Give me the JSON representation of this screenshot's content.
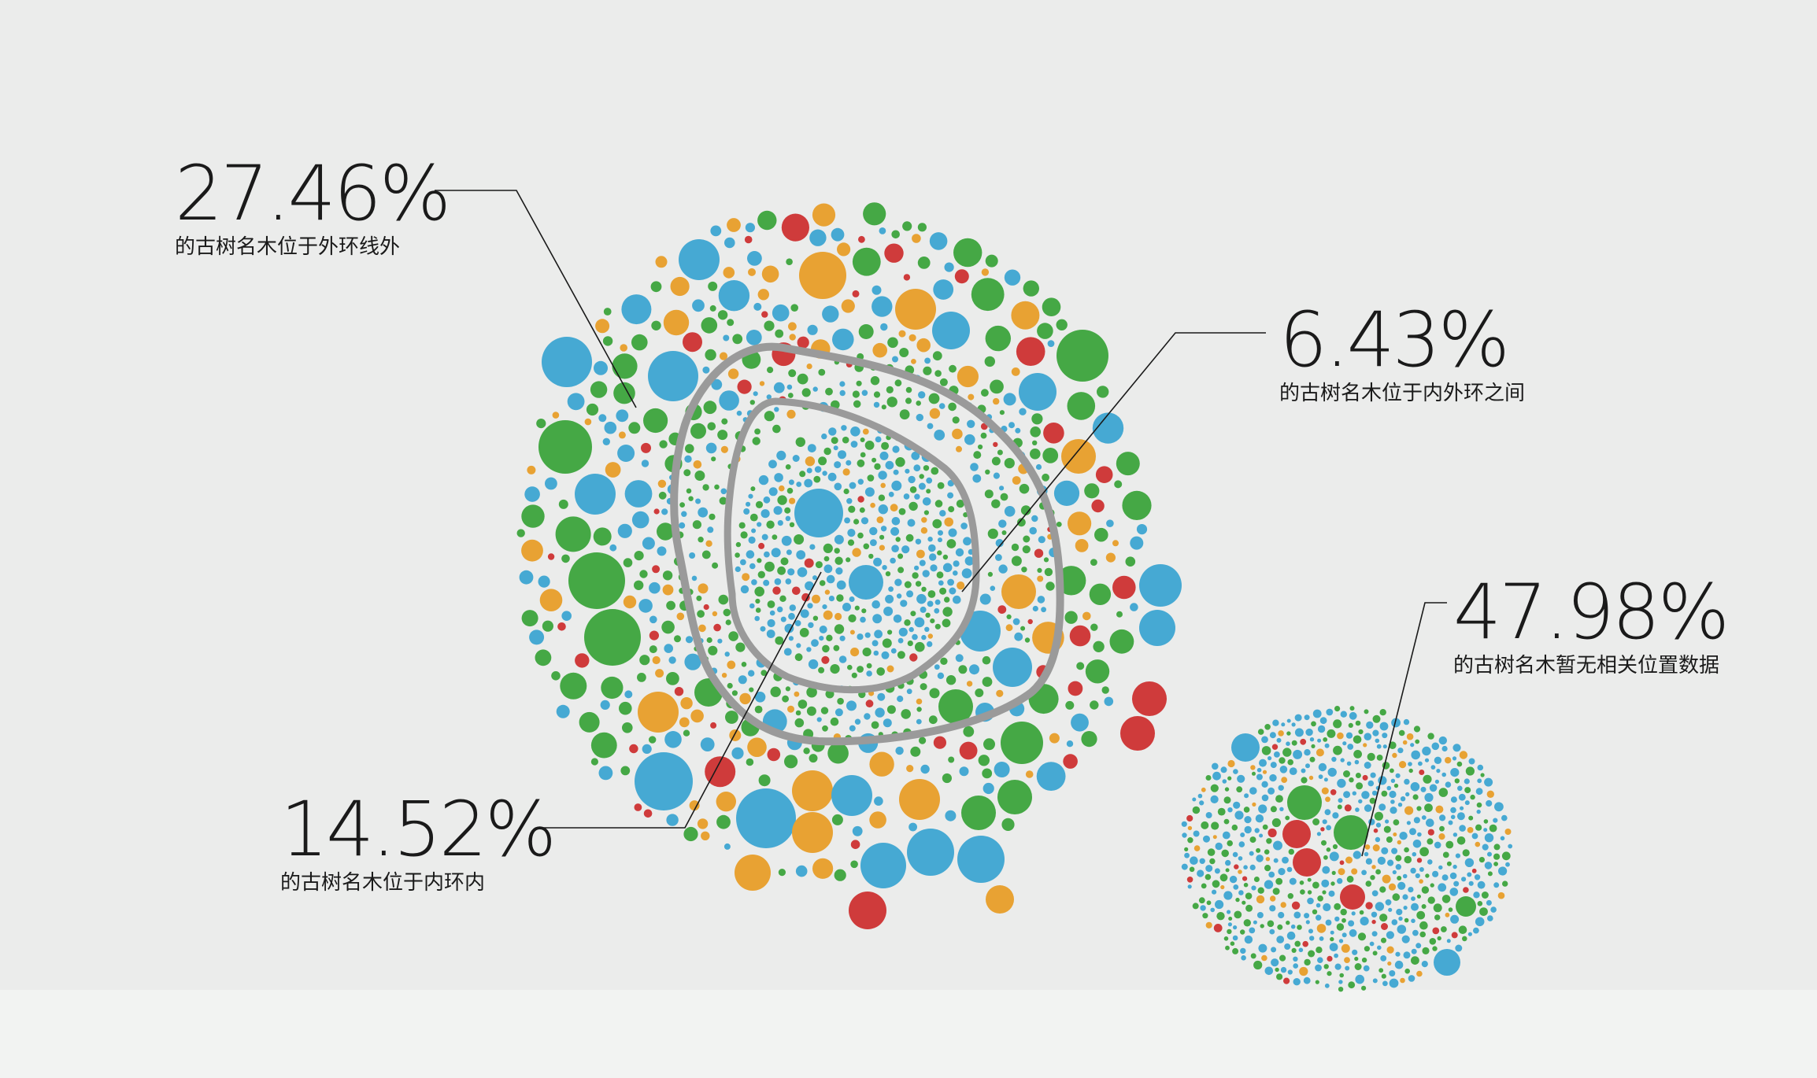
{
  "chart_data": {
    "type": "bubble-cluster",
    "title": "",
    "colors": {
      "blue": "#46a9d3",
      "green": "#45a845",
      "orange": "#e8a233",
      "red": "#cf3b3b",
      "ring": "#9a9a9a",
      "leader": "#1a1a1a"
    },
    "annotations": [
      {
        "value": "27.46%",
        "label": "的古树名木位于外环线外"
      },
      {
        "value": "6.43%",
        "label": "的古树名木位于内外环之间"
      },
      {
        "value": "14.52%",
        "label": "的古树名木位于内环内"
      },
      {
        "value": "47.98%",
        "label": "的古树名木暂无相关位置数据"
      }
    ],
    "shares_percent": [
      27.46,
      6.43,
      14.52,
      47.98
    ]
  }
}
